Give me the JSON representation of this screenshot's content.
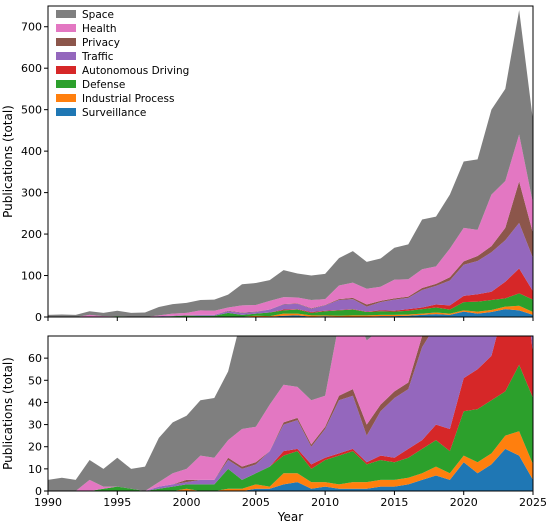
{
  "chart_data": {
    "type": "area",
    "stacked": true,
    "x": [
      1990,
      1991,
      1992,
      1993,
      1994,
      1995,
      1996,
      1997,
      1998,
      1999,
      2000,
      2001,
      2002,
      2003,
      2004,
      2005,
      2006,
      2007,
      2008,
      2009,
      2010,
      2011,
      2012,
      2013,
      2014,
      2015,
      2016,
      2017,
      2018,
      2019,
      2020,
      2021,
      2022,
      2023,
      2024,
      2025
    ],
    "xlabel": "Year",
    "xlim": [
      1990,
      2025
    ],
    "xticks": [
      "1990",
      "1995",
      "2000",
      "2005",
      "2010",
      "2015",
      "2020",
      "2025"
    ],
    "panels": [
      {
        "ylabel": "Publications (total)",
        "ylim": [
          0,
          750
        ],
        "yticks": [
          "0",
          "100",
          "200",
          "300",
          "400",
          "500",
          "600",
          "700"
        ],
        "legend": "top-left"
      },
      {
        "ylabel": "Publications (total)",
        "ylim": [
          0,
          70
        ],
        "yticks": [
          "0",
          "10",
          "20",
          "30",
          "40",
          "50",
          "60"
        ],
        "legend": "none"
      }
    ],
    "series": [
      {
        "name": "Surveillance",
        "color": "#1f77b4",
        "values": [
          0,
          0,
          0,
          0,
          0,
          0,
          0,
          0,
          0,
          0,
          0,
          0,
          0,
          0,
          0,
          1,
          1,
          3,
          4,
          1,
          2,
          1,
          1,
          1,
          2,
          2,
          3,
          5,
          7,
          5,
          13,
          8,
          12,
          19,
          16,
          5
        ]
      },
      {
        "name": "Industrial Process",
        "color": "#ff7f0e",
        "values": [
          0,
          0,
          0,
          0,
          0,
          0,
          0,
          0,
          0,
          0,
          1,
          0,
          0,
          1,
          1,
          2,
          1,
          5,
          4,
          3,
          2,
          2,
          3,
          3,
          3,
          3,
          3,
          3,
          4,
          3,
          3,
          5,
          5,
          6,
          11,
          7
        ]
      },
      {
        "name": "Defense",
        "color": "#2ca02c",
        "values": [
          0,
          0,
          0,
          0,
          1,
          2,
          1,
          0,
          1,
          2,
          2,
          3,
          3,
          9,
          4,
          5,
          9,
          8,
          10,
          6,
          10,
          13,
          14,
          8,
          9,
          8,
          9,
          11,
          12,
          10,
          20,
          24,
          24,
          20,
          30,
          30
        ]
      },
      {
        "name": "Autonomous Driving",
        "color": "#d62728",
        "values": [
          0,
          0,
          0,
          0,
          0,
          0,
          0,
          0,
          0,
          0,
          0,
          0,
          0,
          0,
          0,
          0,
          0,
          2,
          1,
          2,
          1,
          1,
          1,
          1,
          2,
          2,
          4,
          4,
          7,
          10,
          15,
          18,
          20,
          40,
          60,
          20
        ]
      },
      {
        "name": "Traffic",
        "color": "#9467bd",
        "values": [
          0,
          0,
          0,
          0,
          0,
          0,
          0,
          0,
          1,
          1,
          1,
          2,
          2,
          4,
          5,
          4,
          7,
          12,
          13,
          8,
          13,
          24,
          24,
          12,
          20,
          27,
          27,
          42,
          45,
          60,
          75,
          80,
          95,
          100,
          110,
          80
        ]
      },
      {
        "name": "Privacy",
        "color": "#8c564b",
        "values": [
          0,
          0,
          0,
          0,
          0,
          0,
          0,
          0,
          0,
          0,
          1,
          0,
          0,
          1,
          1,
          1,
          0,
          1,
          1,
          1,
          1,
          2,
          3,
          5,
          3,
          3,
          3,
          5,
          5,
          8,
          8,
          12,
          15,
          30,
          100,
          60
        ]
      },
      {
        "name": "Health",
        "color": "#e377c2",
        "values": [
          0,
          0,
          0,
          5,
          1,
          0,
          0,
          0,
          2,
          5,
          5,
          11,
          10,
          8,
          17,
          16,
          21,
          17,
          14,
          20,
          14,
          33,
          37,
          38,
          34,
          45,
          42,
          45,
          42,
          69,
          81,
          63,
          124,
          113,
          113,
          72
        ]
      },
      {
        "name": "Space",
        "color": "#7f7f7f",
        "values": [
          5,
          6,
          5,
          9,
          8,
          13,
          9,
          11,
          20,
          23,
          24,
          25,
          27,
          31,
          51,
          53,
          50,
          65,
          58,
          59,
          61,
          66,
          76,
          65,
          68,
          77,
          84,
          120,
          120,
          130,
          160,
          170,
          205,
          222,
          300,
          200
        ]
      }
    ]
  }
}
